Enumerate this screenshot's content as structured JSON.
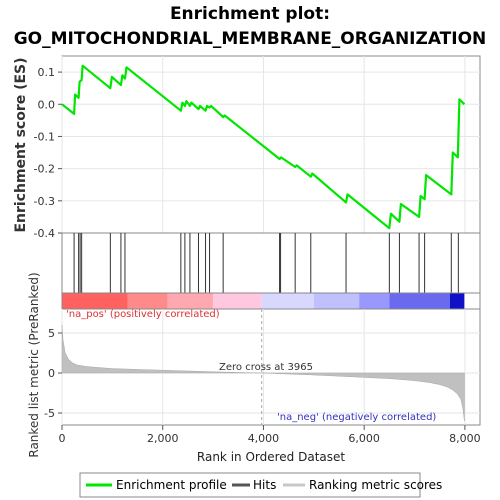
{
  "chart_data": {
    "type": "line",
    "title_line1": "Enrichment plot:",
    "title_line2": "GO_MITOCHONDRIAL_MEMBRANE_ORGANIZATION",
    "top_panel": {
      "ylabel": "Enrichment score (ES)",
      "ylim": [
        -0.4,
        0.15
      ],
      "yticks": [
        "0.1",
        "0.0",
        "-0.1",
        "-0.2",
        "-0.3",
        "-0.4"
      ],
      "ytick_values": [
        0.1,
        0.0,
        -0.1,
        -0.2,
        -0.3,
        -0.4
      ],
      "series": [
        {
          "name": "Enrichment profile",
          "color": "#00e600",
          "x": [
            0,
            240,
            260,
            330,
            350,
            390,
            410,
            960,
            990,
            1170,
            1200,
            1250,
            1280,
            2360,
            2390,
            2440,
            2470,
            2540,
            2570,
            2710,
            2740,
            2850,
            2880,
            2930,
            2960,
            3200,
            3230,
            4320,
            4350,
            4630,
            4660,
            4940,
            4970,
            5640,
            5670,
            6500,
            6530,
            6700,
            6730,
            7090,
            7120,
            7200,
            7230,
            7730,
            7760,
            7860,
            7890,
            7990
          ],
          "y": [
            0.0,
            -0.03,
            0.03,
            0.02,
            0.07,
            0.075,
            0.12,
            0.05,
            0.085,
            0.06,
            0.09,
            0.08,
            0.115,
            -0.02,
            0.005,
            -0.005,
            0.01,
            -0.005,
            0.005,
            -0.015,
            -0.005,
            -0.02,
            -0.005,
            -0.01,
            -0.005,
            -0.04,
            -0.035,
            -0.17,
            -0.165,
            -0.195,
            -0.19,
            -0.225,
            -0.215,
            -0.305,
            -0.28,
            -0.385,
            -0.34,
            -0.365,
            -0.31,
            -0.35,
            -0.285,
            -0.295,
            -0.22,
            -0.28,
            -0.15,
            -0.165,
            0.015,
            0.0
          ]
        }
      ]
    },
    "hits": [
      240,
      330,
      360,
      390,
      960,
      1170,
      1250,
      2360,
      2440,
      2540,
      2710,
      2850,
      2930,
      3200,
      4320,
      4340,
      4630,
      4940,
      5640,
      6500,
      6700,
      7090,
      7200,
      7730,
      7870
    ],
    "heatmap_bar": {
      "segments": [
        {
          "x0": 0,
          "x1": 1300,
          "color": "#ff6060"
        },
        {
          "x0": 1300,
          "x1": 2100,
          "color": "#ff8a8a"
        },
        {
          "x0": 2100,
          "x1": 3000,
          "color": "#ffa8b0"
        },
        {
          "x0": 3000,
          "x1": 3965,
          "color": "#ffc8e0"
        },
        {
          "x0": 3965,
          "x1": 5000,
          "color": "#d8d8ff"
        },
        {
          "x0": 5000,
          "x1": 5900,
          "color": "#c0c0ff"
        },
        {
          "x0": 5900,
          "x1": 6500,
          "color": "#9898ff"
        },
        {
          "x0": 6500,
          "x1": 7700,
          "color": "#6a6af0"
        },
        {
          "x0": 7700,
          "x1": 7990,
          "color": "#1010c8"
        }
      ]
    },
    "bottom_panel": {
      "ylabel": "Ranked list metric (PreRanked)",
      "ylim": [
        -6.5,
        8
      ],
      "yticks": [
        "5",
        "0",
        "-5"
      ],
      "ytick_values": [
        5,
        0,
        -5
      ],
      "metric_profile": {
        "x": [
          0,
          20,
          60,
          120,
          200,
          300,
          500,
          1000,
          2000,
          3000,
          3965,
          5000,
          6000,
          6500,
          7000,
          7300,
          7500,
          7650,
          7750,
          7850,
          7920,
          7960,
          7990
        ],
        "y": [
          6.0,
          4.2,
          2.6,
          1.8,
          1.3,
          1.0,
          0.8,
          0.55,
          0.35,
          0.15,
          0.0,
          -0.25,
          -0.55,
          -0.7,
          -0.95,
          -1.2,
          -1.45,
          -1.75,
          -2.1,
          -2.6,
          -3.3,
          -4.5,
          -6.0
        ]
      },
      "zero_cross": 3965,
      "zero_cross_label": "Zero cross at 3965",
      "pos_label": "'na_pos' (positively correlated)",
      "neg_label": "'na_neg' (negatively correlated)"
    },
    "xlabel": "Rank in Ordered Dataset",
    "xlim": [
      0,
      8300
    ],
    "xticks": [
      "0",
      "2,000",
      "4,000",
      "6,000",
      "8,000"
    ],
    "xtick_values": [
      0,
      2000,
      4000,
      6000,
      8000
    ],
    "legend": {
      "placement": "bottom",
      "items": [
        {
          "label": "Enrichment profile",
          "color": "#00e600"
        },
        {
          "label": "Hits",
          "color": "#555555"
        },
        {
          "label": "Ranking metric scores",
          "color": "#c8c8c8"
        }
      ]
    },
    "colors": {
      "profile": "#00e600",
      "pos_text": "#e03030",
      "neg_text": "#3030c0",
      "metric_fill": "#c0c0c0"
    }
  }
}
